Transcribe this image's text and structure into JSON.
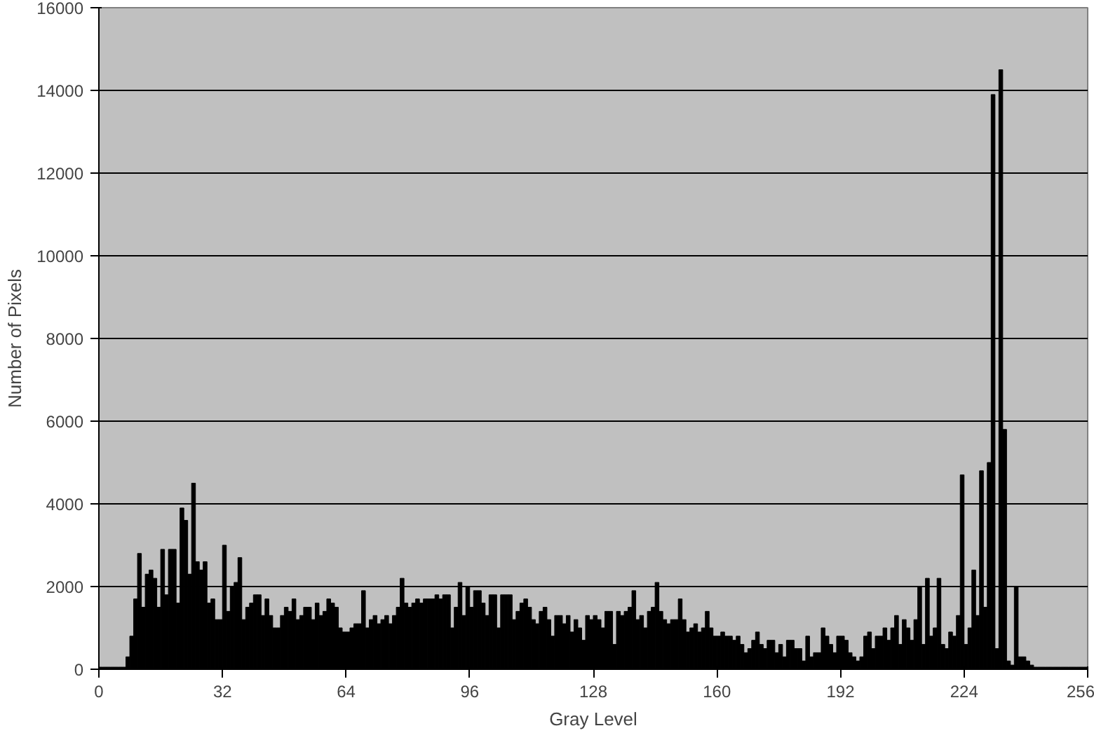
{
  "chart_data": {
    "type": "histogram",
    "xlabel": "Gray Level",
    "ylabel": "Number of Pixels",
    "color": "#000000",
    "bins": [
      0,
      1,
      2,
      3,
      4,
      5,
      6,
      7,
      8,
      9,
      10,
      11,
      12,
      13,
      14,
      15,
      16,
      17,
      18,
      19,
      20,
      21,
      22,
      23,
      24,
      25,
      26,
      27,
      28,
      29,
      30,
      31,
      32,
      33,
      34,
      35,
      36,
      37,
      38,
      39,
      40,
      41,
      42,
      43,
      44,
      45,
      46,
      47,
      48,
      49,
      50,
      51,
      52,
      53,
      54,
      55,
      56,
      57,
      58,
      59,
      60,
      61,
      62,
      63,
      64,
      65,
      66,
      67,
      68,
      69,
      70,
      71,
      72,
      73,
      74,
      75,
      76,
      77,
      78,
      79,
      80,
      81,
      82,
      83,
      84,
      85,
      86,
      87,
      88,
      89,
      90,
      91,
      92,
      93,
      94,
      95,
      96,
      97,
      98,
      99,
      100,
      101,
      102,
      103,
      104,
      105,
      106,
      107,
      108,
      109,
      110,
      111,
      112,
      113,
      114,
      115,
      116,
      117,
      118,
      119,
      120,
      121,
      122,
      123,
      124,
      125,
      126,
      127,
      128,
      129,
      130,
      131,
      132,
      133,
      134,
      135,
      136,
      137,
      138,
      139,
      140,
      141,
      142,
      143,
      144,
      145,
      146,
      147,
      148,
      149,
      150,
      151,
      152,
      153,
      154,
      155,
      156,
      157,
      158,
      159,
      160,
      161,
      162,
      163,
      164,
      165,
      166,
      167,
      168,
      169,
      170,
      171,
      172,
      173,
      174,
      175,
      176,
      177,
      178,
      179,
      180,
      181,
      182,
      183,
      184,
      185,
      186,
      187,
      188,
      189,
      190,
      191,
      192,
      193,
      194,
      195,
      196,
      197,
      198,
      199,
      200,
      201,
      202,
      203,
      204,
      205,
      206,
      207,
      208,
      209,
      210,
      211,
      212,
      213,
      214,
      215,
      216,
      217,
      218,
      219,
      220,
      221,
      222,
      223,
      224,
      225,
      226,
      227,
      228,
      229,
      230,
      231,
      232,
      233,
      234,
      235,
      236,
      237,
      238,
      239,
      240,
      241,
      242,
      243,
      244,
      245,
      246,
      247,
      248,
      249,
      250,
      251,
      252,
      253,
      254,
      255,
      256
    ],
    "values": [
      50,
      50,
      50,
      50,
      50,
      50,
      50,
      300,
      800,
      1700,
      2800,
      1500,
      2300,
      2400,
      2200,
      1500,
      2900,
      1800,
      2900,
      2900,
      1600,
      3900,
      3600,
      2300,
      4500,
      2600,
      2400,
      2600,
      1600,
      1700,
      1200,
      1200,
      3000,
      1400,
      2000,
      2100,
      2700,
      1200,
      1500,
      1600,
      1800,
      1800,
      1300,
      1700,
      1300,
      1000,
      1000,
      1300,
      1500,
      1400,
      1700,
      1200,
      1300,
      1500,
      1500,
      1200,
      1600,
      1300,
      1400,
      1700,
      1600,
      1500,
      1000,
      900,
      900,
      1000,
      1100,
      1100,
      1900,
      1000,
      1200,
      1300,
      1100,
      1200,
      1300,
      1100,
      1300,
      1500,
      2200,
      1600,
      1500,
      1600,
      1700,
      1600,
      1700,
      1700,
      1700,
      1800,
      1700,
      1800,
      1800,
      1000,
      1500,
      2100,
      1300,
      2000,
      1500,
      1900,
      1900,
      1600,
      1300,
      1800,
      1800,
      1000,
      1800,
      1800,
      1800,
      1200,
      1400,
      1600,
      1700,
      1500,
      1200,
      1100,
      1400,
      1500,
      1200,
      800,
      1300,
      1300,
      1100,
      1300,
      900,
      1200,
      1000,
      700,
      1300,
      1200,
      1300,
      1200,
      1000,
      1400,
      1400,
      600,
      1400,
      1300,
      1400,
      1500,
      1900,
      1200,
      1300,
      1000,
      1400,
      1500,
      2100,
      1400,
      1200,
      1100,
      1200,
      1200,
      1700,
      1200,
      900,
      1000,
      1100,
      900,
      1000,
      1400,
      1000,
      800,
      800,
      900,
      800,
      800,
      700,
      800,
      600,
      400,
      500,
      700,
      900,
      600,
      500,
      700,
      700,
      400,
      600,
      300,
      700,
      700,
      500,
      500,
      200,
      800,
      300,
      400,
      400,
      1000,
      800,
      600,
      400,
      800,
      800,
      700,
      400,
      300,
      200,
      300,
      800,
      900,
      500,
      800,
      800,
      1000,
      700,
      1000,
      1300,
      600,
      1200,
      1000,
      700,
      1200,
      2000,
      600,
      2200,
      800,
      1000,
      2200,
      600,
      500,
      900,
      800,
      1300,
      4700,
      600,
      1000,
      2400,
      1300,
      4800,
      1500,
      5000,
      13900,
      500,
      14500,
      5800,
      200,
      100,
      2000,
      300,
      300,
      200,
      100,
      50,
      50,
      50,
      50,
      50,
      50,
      50,
      50,
      50,
      50,
      50,
      50,
      50,
      50
    ],
    "xlim": [
      0,
      256
    ],
    "xticks": [
      0,
      32,
      64,
      96,
      128,
      160,
      192,
      224,
      256
    ],
    "ylim": [
      0,
      16000
    ],
    "yticks": [
      0,
      2000,
      4000,
      6000,
      8000,
      10000,
      12000,
      14000,
      16000
    ],
    "grid": "y"
  }
}
